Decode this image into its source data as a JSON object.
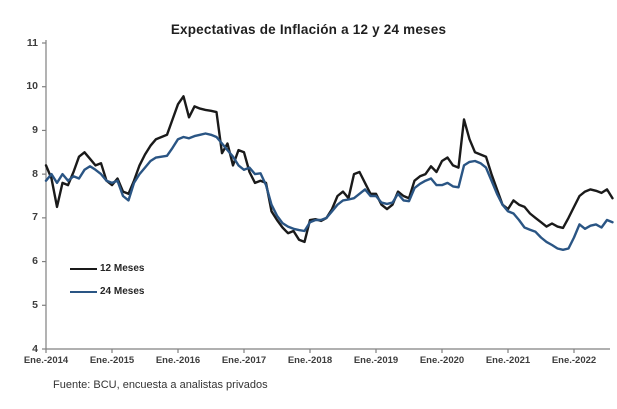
{
  "title": "Expectativas de Inflación a 12 y 24 meses",
  "footer": "Fuente: BCU, encuesta a analistas privados",
  "colors": {
    "axis": "#808080",
    "tick_text": "#3d3d3d",
    "series_12m": "#1a1a1a",
    "series_24m": "#2a5584"
  },
  "chart_data": {
    "type": "line",
    "title": "Expectativas de Inflación a 12 y 24 meses",
    "xlabel": "",
    "ylabel": "",
    "ylim": [
      4,
      11
    ],
    "y_ticks": [
      4,
      5,
      6,
      7,
      8,
      9,
      10,
      11
    ],
    "x_tick_labels": [
      "Ene.-2014",
      "Ene.-2015",
      "Ene.-2016",
      "Ene.-2017",
      "Ene.-2018",
      "Ene.-2019",
      "Ene.-2020",
      "Ene.-2021",
      "Ene.-2022"
    ],
    "x_frequency": "monthly",
    "grid": false,
    "legend_position": "inside-left",
    "series": [
      {
        "name": "12 Meses",
        "color": "#1a1a1a",
        "values": [
          8.2,
          7.9,
          7.25,
          7.8,
          7.75,
          8.05,
          8.4,
          8.5,
          8.35,
          8.2,
          8.25,
          7.85,
          7.75,
          7.9,
          7.6,
          7.55,
          7.85,
          8.2,
          8.45,
          8.65,
          8.8,
          8.85,
          8.9,
          9.25,
          9.6,
          9.78,
          9.3,
          9.55,
          9.5,
          9.47,
          9.45,
          9.42,
          8.48,
          8.7,
          8.2,
          8.55,
          8.5,
          8.05,
          7.8,
          7.85,
          7.8,
          7.15,
          6.95,
          6.78,
          6.65,
          6.7,
          6.5,
          6.45,
          6.95,
          6.97,
          6.93,
          7.0,
          7.2,
          7.5,
          7.6,
          7.45,
          8.0,
          8.05,
          7.8,
          7.55,
          7.55,
          7.3,
          7.2,
          7.3,
          7.6,
          7.5,
          7.45,
          7.85,
          7.95,
          8.0,
          8.18,
          8.05,
          8.3,
          8.38,
          8.2,
          8.15,
          9.25,
          8.8,
          8.5,
          8.45,
          8.4,
          8.0,
          7.65,
          7.3,
          7.2,
          7.4,
          7.3,
          7.25,
          7.1,
          7.0,
          6.9,
          6.8,
          6.87,
          6.8,
          6.77,
          7.0,
          7.25,
          7.5,
          7.6,
          7.65,
          7.62,
          7.57,
          7.65,
          7.45
        ]
      },
      {
        "name": "24 Meses",
        "color": "#2a5584",
        "values": [
          7.85,
          8.0,
          7.8,
          8.0,
          7.85,
          7.95,
          7.9,
          8.1,
          8.18,
          8.1,
          8.0,
          7.85,
          7.8,
          7.85,
          7.5,
          7.4,
          7.8,
          8.0,
          8.15,
          8.3,
          8.38,
          8.4,
          8.42,
          8.6,
          8.8,
          8.85,
          8.82,
          8.87,
          8.9,
          8.93,
          8.9,
          8.85,
          8.7,
          8.55,
          8.4,
          8.2,
          8.1,
          8.15,
          8.0,
          8.02,
          7.75,
          7.3,
          7.05,
          6.88,
          6.8,
          6.75,
          6.72,
          6.7,
          6.9,
          6.95,
          6.95,
          7.0,
          7.15,
          7.3,
          7.4,
          7.42,
          7.45,
          7.55,
          7.65,
          7.5,
          7.5,
          7.35,
          7.32,
          7.35,
          7.55,
          7.4,
          7.38,
          7.68,
          7.78,
          7.85,
          7.9,
          7.75,
          7.75,
          7.8,
          7.72,
          7.7,
          8.2,
          8.28,
          8.3,
          8.25,
          8.15,
          7.85,
          7.55,
          7.3,
          7.15,
          7.1,
          6.95,
          6.78,
          6.73,
          6.68,
          6.55,
          6.45,
          6.38,
          6.3,
          6.27,
          6.3,
          6.55,
          6.85,
          6.75,
          6.82,
          6.85,
          6.78,
          6.95,
          6.9
        ]
      }
    ]
  }
}
